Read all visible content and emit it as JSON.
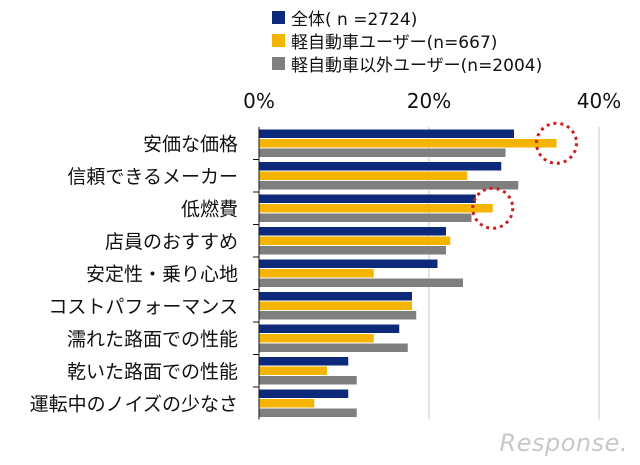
{
  "chart_data": {
    "type": "bar",
    "orientation": "horizontal",
    "categories": [
      "安価な価格",
      "信頼できるメーカー",
      "低燃費",
      "店員のおすすめ",
      "安定性・乗り心地",
      "コストパフォーマンス",
      "濡れた路面での性能",
      "乾いた路面での性能",
      "運転中のノイズの少なさ"
    ],
    "series": [
      {
        "name": "全体( n =2724)",
        "values": [
          30,
          28.5,
          25.5,
          22,
          21,
          18,
          16.5,
          10.5,
          10.5
        ]
      },
      {
        "name": "軽自動車ユーザー(n=667)",
        "values": [
          35,
          24.5,
          27.5,
          22.5,
          13.5,
          18,
          13.5,
          8,
          6.5
        ]
      },
      {
        "name": "軽自動車以外ユーザー(n=2004)",
        "values": [
          29,
          30.5,
          25,
          22,
          24,
          18.5,
          17.5,
          11.5,
          11.5
        ]
      }
    ],
    "xticks": [
      "0%",
      "20%",
      "40%"
    ],
    "xlim": [
      0,
      40
    ],
    "grid": true,
    "legend_position": "top-right",
    "highlights": [
      "安価な価格",
      "低燃費"
    ]
  },
  "colors": {
    "series": [
      "#0d2a7a",
      "#f5b400",
      "#7f7f7f"
    ],
    "highlight": "#cc1f1f",
    "grid": "#c8c8c8"
  },
  "watermark": "Response."
}
